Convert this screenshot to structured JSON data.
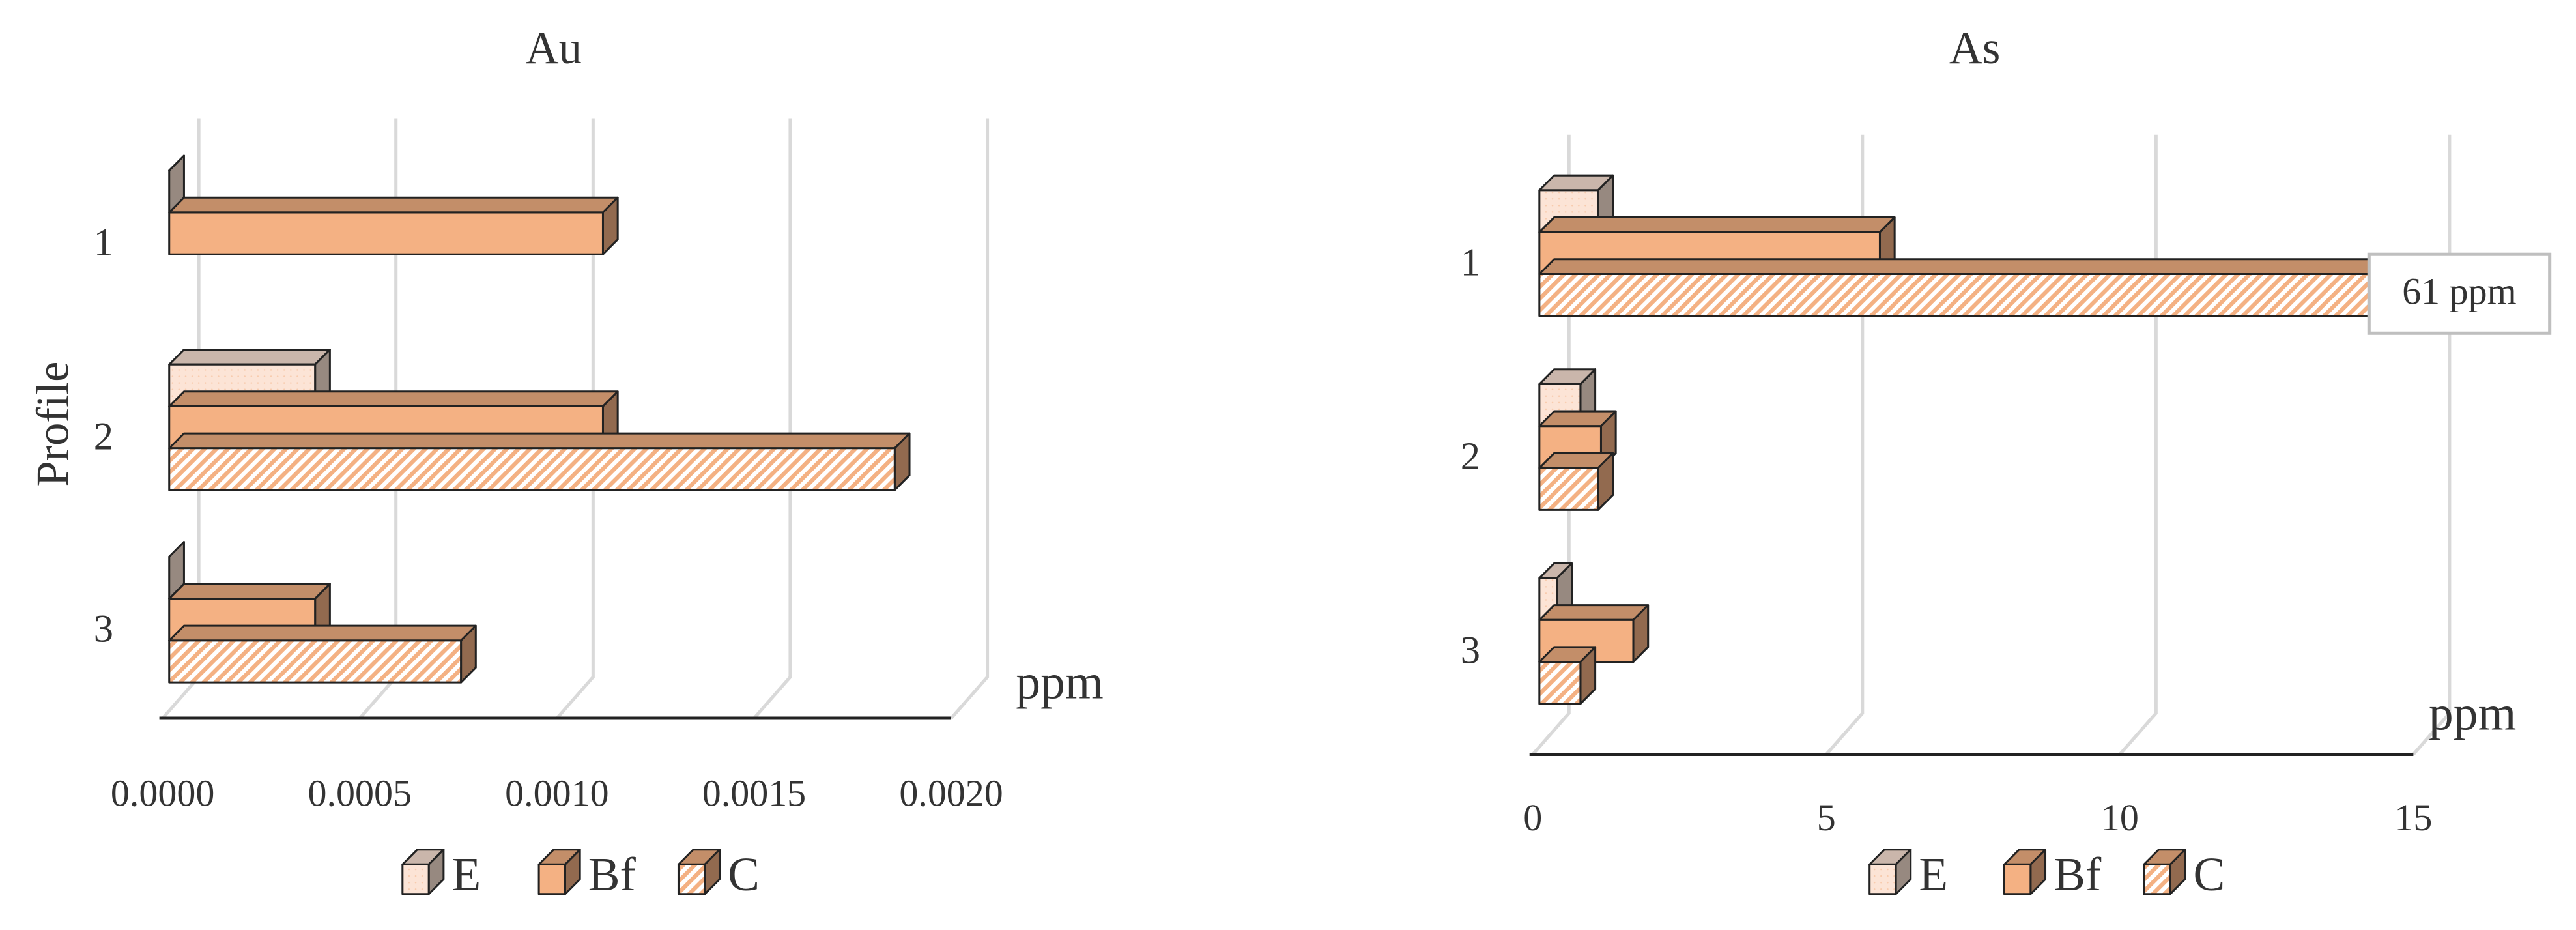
{
  "chart_data": [
    {
      "type": "bar3d",
      "title": "Au",
      "y_label": "Profile",
      "x_label": "ppm",
      "categories": [
        "1",
        "2",
        "3"
      ],
      "series": [
        {
          "name": "E",
          "color": "#fce4d6",
          "pattern": "dots",
          "values": [
            0,
            0.00037,
            0
          ]
        },
        {
          "name": "Bf",
          "color": "#f4b183",
          "pattern": "solid",
          "values": [
            0.0011,
            0.0011,
            0.00037
          ]
        },
        {
          "name": "C",
          "color": "#f4b183",
          "pattern": "hatch",
          "values": [
            null,
            0.00184,
            0.00074
          ]
        }
      ],
      "xlim": [
        0,
        0.002
      ],
      "xticks": [
        {
          "value": 0,
          "label": "0.0000"
        },
        {
          "value": 0.0005,
          "label": "0.0005"
        },
        {
          "value": 0.001,
          "label": "0.0010"
        },
        {
          "value": 0.0015,
          "label": "0.0015"
        },
        {
          "value": 0.002,
          "label": "0.0020"
        }
      ],
      "grid": true,
      "legend": "bottom"
    },
    {
      "type": "bar3d",
      "title": "As",
      "x_label": "ppm",
      "categories": [
        "1",
        "2",
        "3"
      ],
      "series": [
        {
          "name": "E",
          "color": "#fce4d6",
          "pattern": "dots",
          "values": [
            1.0,
            0.7,
            0.3
          ]
        },
        {
          "name": "Bf",
          "color": "#f4b183",
          "pattern": "solid",
          "values": [
            5.8,
            1.05,
            1.6
          ]
        },
        {
          "name": "C",
          "color": "#f4b183",
          "pattern": "hatch",
          "values": [
            61,
            1.0,
            0.7
          ],
          "value_labels": [
            "61 ppm",
            null,
            null
          ]
        }
      ],
      "xlim": [
        0,
        15
      ],
      "xticks": [
        0,
        5,
        10,
        15
      ],
      "grid": true,
      "legend": "bottom"
    }
  ]
}
